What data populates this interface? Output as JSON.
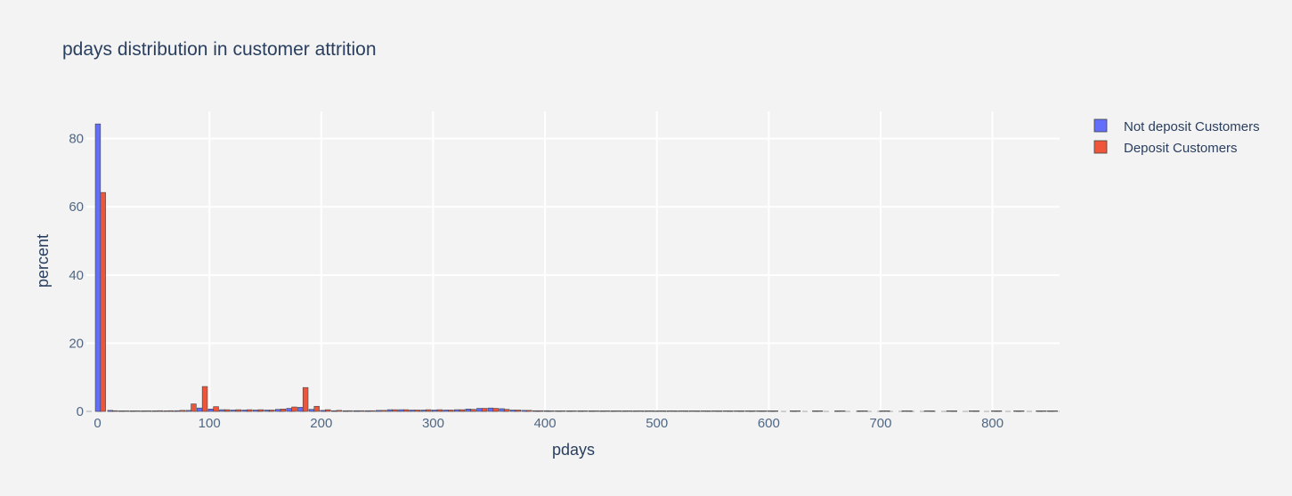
{
  "chart_data": {
    "type": "bar",
    "title": "pdays distribution in customer attrition",
    "xlabel": "pdays",
    "ylabel": "percent",
    "xlim": [
      -10,
      860
    ],
    "ylim": [
      0,
      88
    ],
    "xticks": [
      0,
      100,
      200,
      300,
      400,
      500,
      600,
      700,
      800
    ],
    "yticks": [
      0,
      20,
      40,
      60,
      80
    ],
    "bin_width": 10,
    "grid": true,
    "legend_position": "top-right",
    "x": [
      -1,
      10,
      20,
      30,
      40,
      50,
      60,
      70,
      80,
      90,
      100,
      110,
      120,
      130,
      140,
      150,
      160,
      170,
      180,
      190,
      200,
      210,
      220,
      230,
      240,
      250,
      260,
      270,
      280,
      290,
      300,
      310,
      320,
      330,
      340,
      350,
      360,
      370,
      380,
      390,
      400,
      410,
      420,
      430,
      440,
      450,
      460,
      470,
      480,
      490,
      500,
      510,
      520,
      530,
      540,
      550,
      560,
      570,
      580,
      590,
      600,
      620,
      640,
      660,
      680,
      700,
      720,
      740,
      760,
      780,
      800,
      820,
      840,
      850
    ],
    "series": [
      {
        "name": "Not deposit Customers",
        "color": "#636efa",
        "values": [
          84.3,
          0.3,
          0.1,
          0.1,
          0.1,
          0.1,
          0.1,
          0.2,
          0.3,
          1.0,
          0.7,
          0.5,
          0.4,
          0.4,
          0.4,
          0.4,
          0.6,
          0.9,
          1.2,
          0.6,
          0.3,
          0.2,
          0.2,
          0.2,
          0.2,
          0.3,
          0.5,
          0.5,
          0.4,
          0.4,
          0.4,
          0.4,
          0.5,
          0.7,
          0.9,
          1.0,
          0.8,
          0.4,
          0.3,
          0.2,
          0.2,
          0.15,
          0.1,
          0.1,
          0.1,
          0.1,
          0.1,
          0.1,
          0.1,
          0.05,
          0.05,
          0.05,
          0.05,
          0.05,
          0.05,
          0.05,
          0.05,
          0.05,
          0.05,
          0.05,
          0.05,
          0.05,
          0.05,
          0.05,
          0.05,
          0.05,
          0.05,
          0.05,
          0.05,
          0.05,
          0.05,
          0.05,
          0.05,
          0.05
        ]
      },
      {
        "name": "Deposit Customers",
        "color": "#ef553b",
        "values": [
          64.2,
          0.2,
          0.1,
          0.1,
          0.1,
          0.2,
          0.2,
          0.3,
          2.2,
          7.3,
          1.4,
          0.5,
          0.5,
          0.5,
          0.5,
          0.4,
          0.7,
          1.3,
          7.0,
          1.5,
          0.5,
          0.3,
          0.2,
          0.2,
          0.2,
          0.3,
          0.5,
          0.5,
          0.4,
          0.5,
          0.5,
          0.4,
          0.5,
          0.6,
          0.9,
          0.9,
          0.6,
          0.4,
          0.3,
          0.2,
          0.15,
          0.1,
          0.1,
          0.1,
          0.1,
          0.1,
          0.1,
          0.1,
          0.1,
          0.05,
          0.05,
          0.05,
          0.05,
          0.05,
          0.05,
          0.05,
          0.05,
          0.05,
          0.05,
          0.05,
          0.05,
          0.05,
          0.05,
          0.05,
          0.05,
          0.05,
          0.05,
          0.05,
          0.05,
          0.05,
          0.05,
          0.05,
          0.05,
          0.05
        ]
      }
    ]
  }
}
